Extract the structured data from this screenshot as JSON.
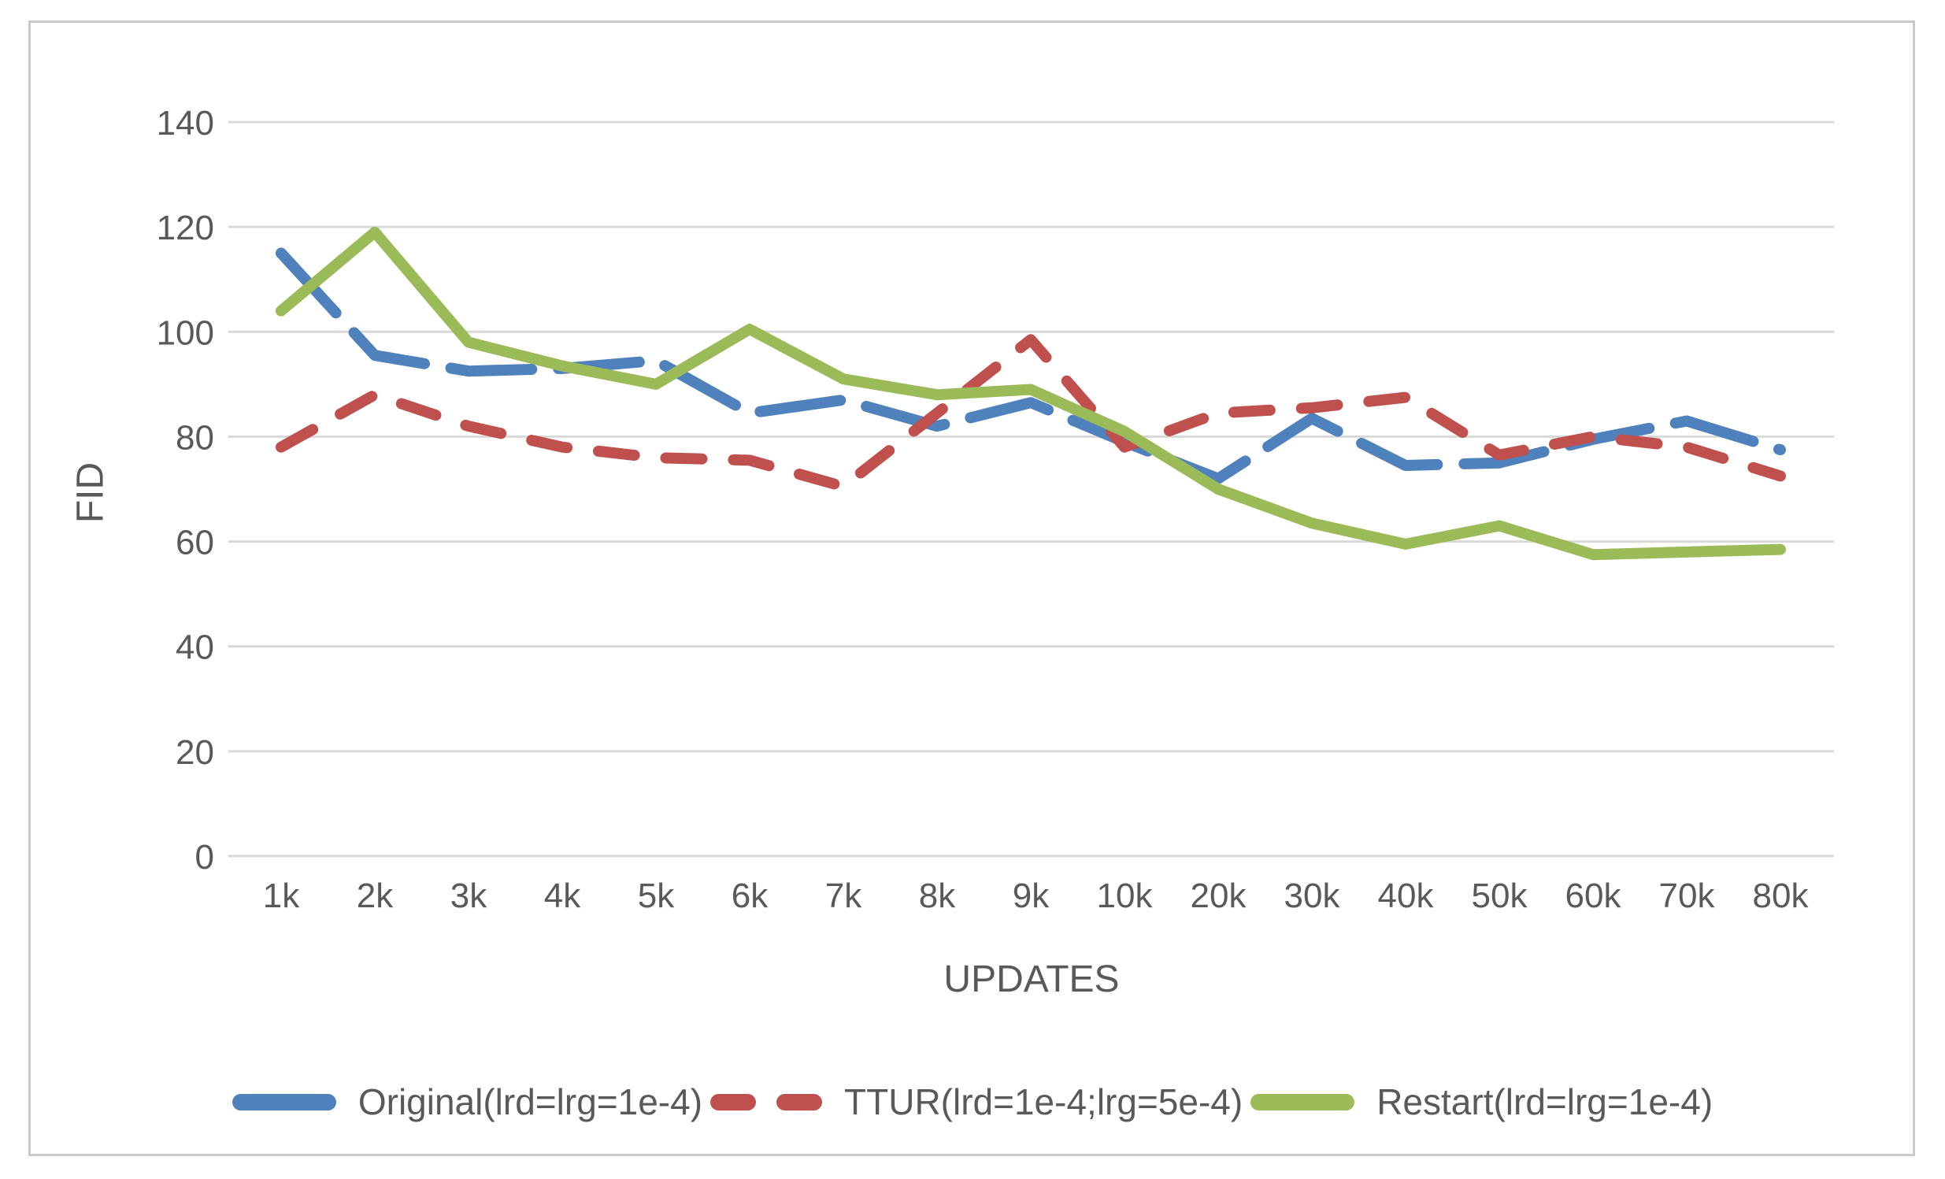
{
  "frame": {
    "border_color": "#c9c9c9",
    "background": "#ffffff"
  },
  "chart_data": {
    "type": "line",
    "title": "",
    "xlabel": "UPDATES",
    "ylabel": "FID",
    "categories": [
      "1k",
      "2k",
      "3k",
      "4k",
      "5k",
      "6k",
      "7k",
      "8k",
      "9k",
      "10k",
      "20k",
      "30k",
      "40k",
      "50k",
      "60k",
      "70k",
      "80k"
    ],
    "series": [
      {
        "name": "Original(lrd=lrg=1e-4)",
        "color": "#4F81BD",
        "style": "long-dash",
        "values": [
          115,
          95.5,
          92.5,
          93,
          94.5,
          84.5,
          87,
          82,
          86.5,
          79,
          72,
          83.5,
          74.5,
          75,
          79.5,
          83,
          77.5
        ]
      },
      {
        "name": "TTUR(lrd=1e-4;lrg=5e-4)",
        "color": "#C0504D",
        "style": "dash",
        "values": [
          78,
          88,
          82,
          78,
          76,
          75.5,
          70.5,
          84.5,
          98.5,
          78,
          84.5,
          85.5,
          87.5,
          76.5,
          80,
          78,
          72.5
        ]
      },
      {
        "name": "Restart(lrd=lrg=1e-4)",
        "color": "#9BBB59",
        "style": "solid",
        "values": [
          104,
          119,
          98,
          93.5,
          90,
          100.5,
          91,
          88,
          89,
          81,
          70,
          63.5,
          59.5,
          63,
          57.5,
          58,
          58.5
        ]
      }
    ],
    "y_axis": {
      "min": 0,
      "max": 140,
      "step": 20
    },
    "grid": true,
    "legend_position": "bottom",
    "gridline_color": "#d9d9d9",
    "text_color": "#595959"
  }
}
